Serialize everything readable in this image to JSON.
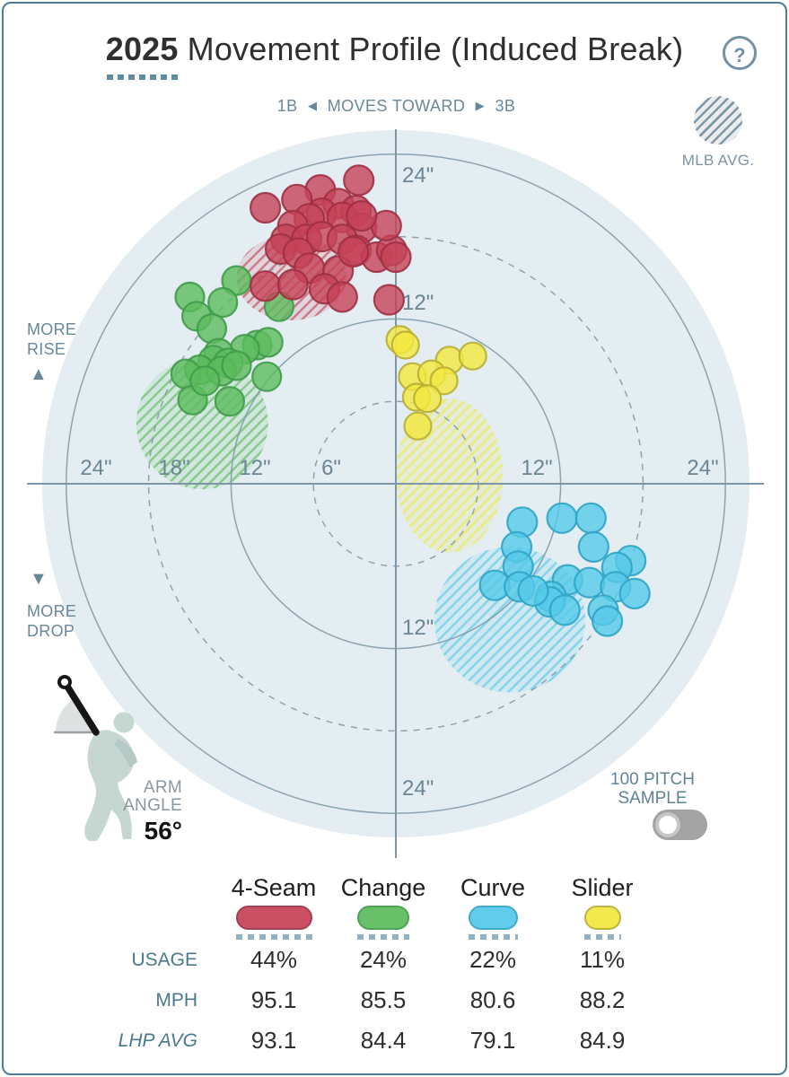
{
  "header": {
    "year": "2025",
    "title": "Movement Profile (Induced Break)",
    "help": "?"
  },
  "arrows": {
    "left": "◀",
    "right": "▶",
    "up": "▲",
    "down": "▼"
  },
  "top_axis_label": {
    "left": "1B",
    "center": "MOVES TOWARD",
    "right": "3B"
  },
  "mlb_avg_label": "MLB AVG.",
  "left_labels": {
    "rise": [
      "MORE",
      "RISE"
    ],
    "drop": [
      "MORE",
      "DROP"
    ]
  },
  "axis_ticks": {
    "h": [
      "24\"",
      "18\"",
      "12\"",
      "6\"",
      "12\"",
      "24\""
    ],
    "v_top": [
      "24\"",
      "12\""
    ],
    "v_bottom": [
      "12\"",
      "24\""
    ]
  },
  "arm_angle": {
    "label": [
      "ARM",
      "ANGLE"
    ],
    "value": "56°"
  },
  "pitch_sample": {
    "label": [
      "100 PITCH",
      "SAMPLE"
    ],
    "toggle_on": false
  },
  "table": {
    "row_labels": {
      "usage": "USAGE",
      "mph": "MPH",
      "lhp_avg": "LHP AVG"
    }
  },
  "colors": {
    "accent": "#5e8ca1",
    "plot_bg": "#e3edf2",
    "grid": "#7e96a5",
    "axis": "#7e96a5",
    "label": "#67879b",
    "table_label": "#49798c",
    "title_text": "#2f2f2f",
    "toggle_bg": "#a3a3a3",
    "mlb_hatch_line": "#7d98a9",
    "mlb_hatch_bg": "#ececec",
    "silhouette": "#c6d7d2"
  },
  "chart_data": {
    "type": "scatter",
    "title": "2025 Movement Profile (Induced Break)",
    "units": "inches",
    "x_axis": "horizontal movement (1B ◀ MOVES TOWARD ▶ 3B)",
    "y_axis": "induced vertical break (MORE RISE up / MORE DROP down)",
    "ring_radii": [
      6,
      12,
      18,
      24
    ],
    "dashed_rings": [
      6,
      18
    ],
    "xlim": [
      -26,
      26
    ],
    "ylim": [
      -26,
      26
    ],
    "arm_angle_deg": 56,
    "series": [
      {
        "name": "4-Seam",
        "usage": "44%",
        "mph": "95.1",
        "lhp_avg": "93.1",
        "fill": "#c64257",
        "stroke": "#9e3044",
        "dot_r": 16.5,
        "mlb_avg_ellipse": {
          "x": -7.6,
          "y": 15.0,
          "rx": 4.0,
          "ry": 3.1
        },
        "points": [
          [
            -2.7,
            22.1
          ],
          [
            -5.5,
            21.4
          ],
          [
            -9.5,
            20.1
          ],
          [
            -7.2,
            20.7
          ],
          [
            -4.2,
            20.4
          ],
          [
            -5.4,
            19.7
          ],
          [
            -6.3,
            19.3
          ],
          [
            -2.9,
            19.9
          ],
          [
            -7.5,
            18.8
          ],
          [
            -3.9,
            19.4
          ],
          [
            -2.5,
            18.6
          ],
          [
            -8.0,
            17.8
          ],
          [
            -6.5,
            17.8
          ],
          [
            -5.4,
            18.0
          ],
          [
            -3.9,
            17.8
          ],
          [
            -8.4,
            17.1
          ],
          [
            -7.1,
            16.8
          ],
          [
            -2.9,
            17.0
          ],
          [
            -1.4,
            16.5
          ],
          [
            -0.3,
            17.0
          ],
          [
            -6.3,
            15.7
          ],
          [
            -4.2,
            15.5
          ],
          [
            -9.5,
            14.4
          ],
          [
            -7.5,
            14.5
          ],
          [
            -5.2,
            14.2
          ],
          [
            -3.9,
            13.6
          ],
          [
            -0.7,
            18.8
          ],
          [
            0.0,
            16.5
          ],
          [
            -0.5,
            13.4
          ],
          [
            -3.1,
            16.9
          ],
          [
            -2.5,
            19.5
          ]
        ]
      },
      {
        "name": "Change",
        "usage": "24%",
        "mph": "85.5",
        "lhp_avg": "84.4",
        "fill": "#5cbc5c",
        "stroke": "#3f9b49",
        "dot_r": 16,
        "mlb_avg_ellipse": {
          "x": -14.1,
          "y": 4.4,
          "rx": 4.8,
          "ry": 4.8
        },
        "points": [
          [
            -15.0,
            13.6
          ],
          [
            -11.6,
            14.8
          ],
          [
            -12.6,
            13.2
          ],
          [
            -14.5,
            12.2
          ],
          [
            -13.4,
            11.3
          ],
          [
            -8.5,
            12.9
          ],
          [
            -10.1,
            10.1
          ],
          [
            -9.3,
            10.3
          ],
          [
            -11.0,
            9.8
          ],
          [
            -12.9,
            9.5
          ],
          [
            -13.3,
            9.0
          ],
          [
            -12.2,
            8.8
          ],
          [
            -14.3,
            8.3
          ],
          [
            -15.3,
            8.0
          ],
          [
            -12.7,
            8.2
          ],
          [
            -11.6,
            8.6
          ],
          [
            -9.4,
            7.8
          ],
          [
            -14.8,
            6.1
          ],
          [
            -12.1,
            6.0
          ],
          [
            -13.9,
            7.5
          ]
        ]
      },
      {
        "name": "Curve",
        "usage": "22%",
        "mph": "80.6",
        "lhp_avg": "79.1",
        "fill": "#55c9e9",
        "stroke": "#2fa4c7",
        "dot_r": 16.5,
        "mlb_avg_ellipse": {
          "x": 8.3,
          "y": -9.9,
          "rx": 5.5,
          "ry": 5.3
        },
        "points": [
          [
            9.2,
            -2.8
          ],
          [
            12.1,
            -2.5
          ],
          [
            14.2,
            -2.5
          ],
          [
            8.8,
            -4.6
          ],
          [
            14.4,
            -4.6
          ],
          [
            8.9,
            -6.0
          ],
          [
            17.1,
            -5.6
          ],
          [
            7.2,
            -7.4
          ],
          [
            9.0,
            -7.5
          ],
          [
            12.5,
            -7.0
          ],
          [
            14.1,
            -7.2
          ],
          [
            16.1,
            -6.1
          ],
          [
            11.3,
            -8.2
          ],
          [
            16.0,
            -7.5
          ],
          [
            17.4,
            -8.0
          ],
          [
            11.2,
            -8.6
          ],
          [
            12.3,
            -9.2
          ],
          [
            15.1,
            -9.2
          ],
          [
            15.4,
            -10.0
          ],
          [
            10.0,
            -7.8
          ]
        ]
      },
      {
        "name": "Slider",
        "usage": "11%",
        "mph": "88.2",
        "lhp_avg": "84.9",
        "fill": "#f2e83e",
        "stroke": "#b9ae35",
        "dot_r": 15,
        "mlb_avg_ellipse": {
          "x": 3.9,
          "y": 0.6,
          "rx": 3.9,
          "ry": 5.6
        },
        "points": [
          [
            0.3,
            10.5
          ],
          [
            0.7,
            10.1
          ],
          [
            3.9,
            9.0
          ],
          [
            5.6,
            9.3
          ],
          [
            1.2,
            7.8
          ],
          [
            2.6,
            8.0
          ],
          [
            3.5,
            7.5
          ],
          [
            1.5,
            6.3
          ],
          [
            2.3,
            6.2
          ],
          [
            1.6,
            4.2
          ]
        ]
      }
    ],
    "legend_position": "bottom"
  }
}
